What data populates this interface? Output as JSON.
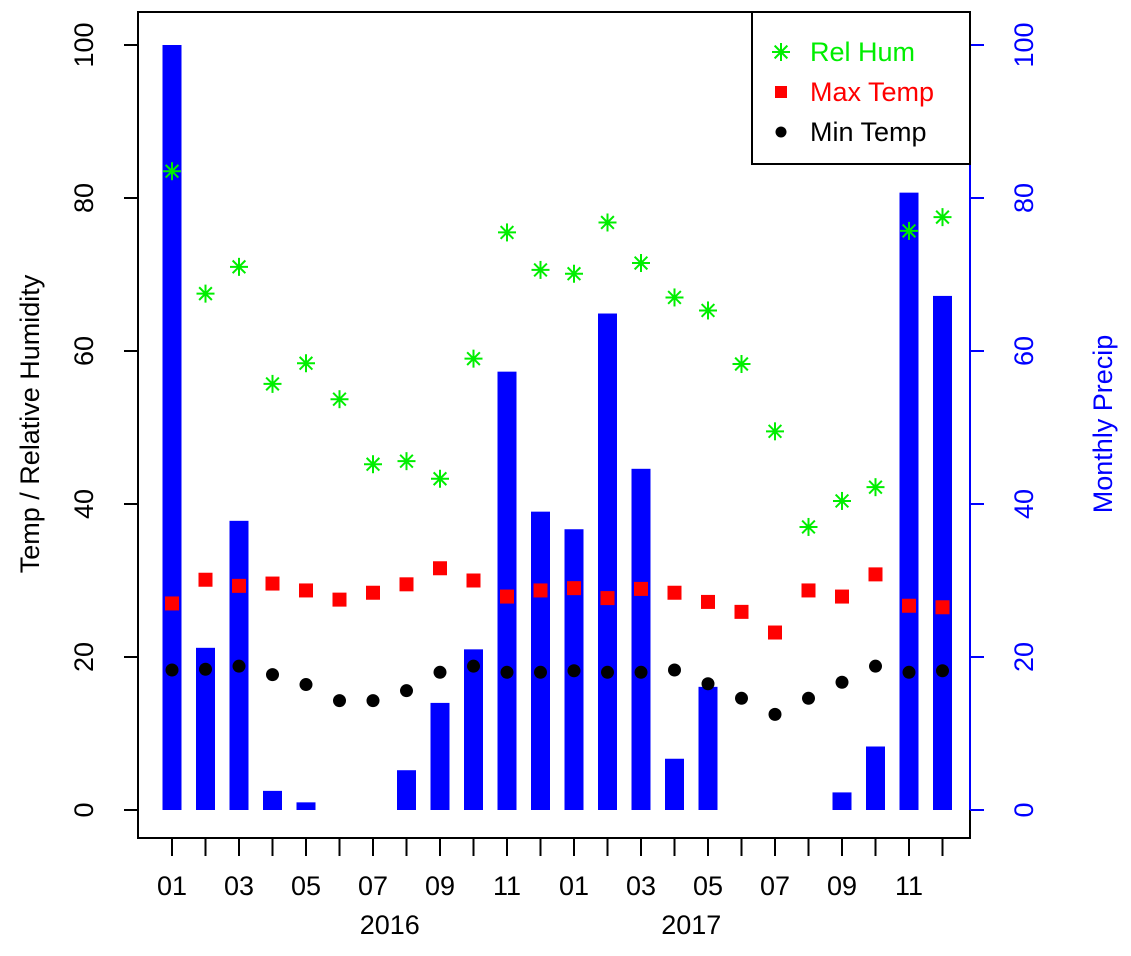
{
  "chart_data": {
    "type": "bar",
    "title": "",
    "xlabel": "",
    "ylabel": "Temp / Relative Humidity",
    "y2label": "Monthly Precip",
    "ylim": [
      0,
      100
    ],
    "y2lim": [
      0,
      100
    ],
    "yticks": [
      "0",
      "20",
      "40",
      "60",
      "80",
      "100"
    ],
    "y2ticks": [
      "0",
      "20",
      "40",
      "60",
      "80",
      "100"
    ],
    "x_tick_labels": [
      "01",
      "",
      "03",
      "",
      "05",
      "",
      "07",
      "",
      "09",
      "",
      "11",
      "",
      "01",
      "",
      "03",
      "",
      "05",
      "",
      "07",
      "",
      "09",
      "",
      "11",
      ""
    ],
    "year_labels": [
      {
        "text": "2016",
        "month_index": 6.5
      },
      {
        "text": "2017",
        "month_index": 15.5
      }
    ],
    "legend_position": "top-right",
    "colors": {
      "rel_hum": "#00ee00",
      "max_temp": "#ff0000",
      "min_temp": "#000000",
      "precip": "#0000ff",
      "axis": "#000000",
      "axis2": "#0000ff"
    },
    "series": [
      {
        "name": "Monthly Precip",
        "kind": "bar",
        "axis": "right",
        "values": [
          100,
          21.2,
          37.8,
          2.5,
          1.0,
          0,
          0,
          5.2,
          14.0,
          21.0,
          57.3,
          39.0,
          36.7,
          64.9,
          44.6,
          6.7,
          16.1,
          0,
          0,
          0,
          2.3,
          8.3,
          80.7,
          67.2
        ]
      },
      {
        "name": "Rel Hum",
        "kind": "point",
        "marker": "asterisk",
        "axis": "left",
        "values": [
          83.5,
          67.5,
          71.0,
          55.7,
          58.4,
          53.7,
          45.2,
          45.6,
          43.3,
          59.0,
          75.5,
          70.6,
          70.1,
          76.8,
          71.5,
          67.0,
          65.3,
          58.3,
          49.5,
          37.0,
          40.4,
          42.2,
          75.7,
          77.5
        ]
      },
      {
        "name": "Max Temp",
        "kind": "point",
        "marker": "square",
        "axis": "left",
        "values": [
          27.0,
          30.1,
          29.3,
          29.6,
          28.7,
          27.5,
          28.4,
          29.5,
          31.6,
          30.0,
          27.9,
          28.7,
          29.0,
          27.7,
          28.9,
          28.4,
          27.2,
          25.9,
          23.2,
          28.7,
          27.9,
          30.8,
          26.7,
          26.5
        ]
      },
      {
        "name": "Min Temp",
        "kind": "point",
        "marker": "circle",
        "axis": "left",
        "values": [
          18.3,
          18.4,
          18.8,
          17.7,
          16.4,
          14.3,
          14.3,
          15.6,
          18.0,
          18.8,
          18.0,
          18.0,
          18.2,
          18.0,
          18.0,
          18.3,
          16.5,
          14.6,
          12.5,
          14.6,
          16.7,
          18.8,
          18.0,
          18.2
        ]
      }
    ],
    "legend": [
      "Rel Hum",
      "Max Temp",
      "Min Temp"
    ]
  }
}
